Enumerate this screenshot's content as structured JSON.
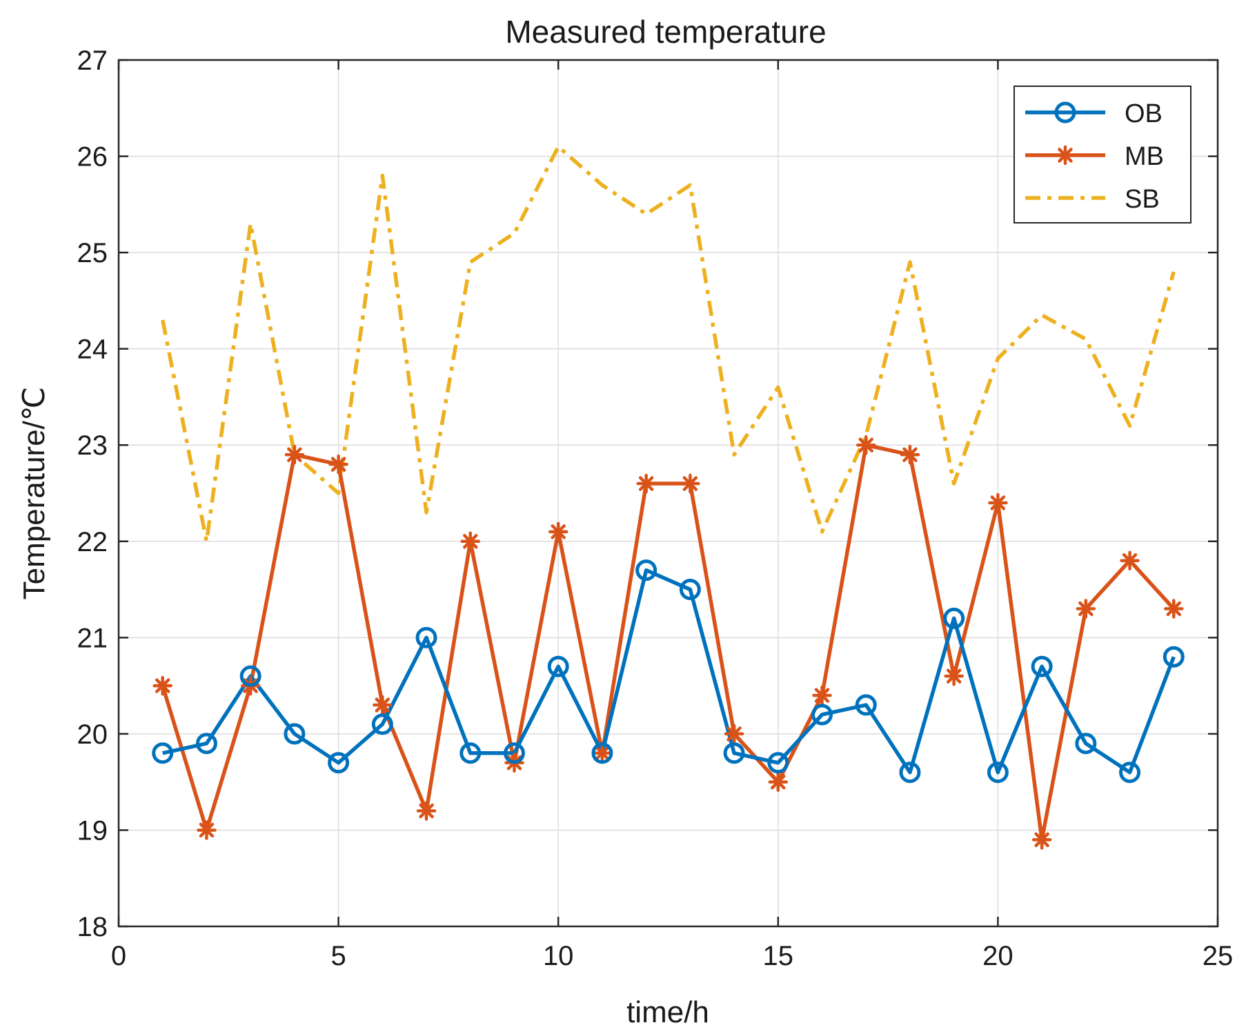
{
  "chart_data": {
    "type": "line",
    "title": "Measured temperature",
    "xlabel": "time/h",
    "ylabel": "Temperature/℃",
    "xlim": [
      0,
      25
    ],
    "ylim": [
      18,
      27
    ],
    "xticks": [
      0,
      5,
      10,
      15,
      20,
      25
    ],
    "yticks": [
      18,
      19,
      20,
      21,
      22,
      23,
      24,
      25,
      26,
      27
    ],
    "grid": true,
    "legend_position": "top-right",
    "x": [
      1,
      2,
      3,
      4,
      5,
      6,
      7,
      8,
      9,
      10,
      11,
      12,
      13,
      14,
      15,
      16,
      17,
      18,
      19,
      20,
      21,
      22,
      23,
      24
    ],
    "series": [
      {
        "name": "OB",
        "color": "#0072BD",
        "marker": "circle",
        "line_style": "solid",
        "values": [
          19.8,
          19.9,
          20.6,
          20.0,
          19.7,
          20.1,
          21.0,
          19.8,
          19.8,
          20.7,
          19.8,
          21.7,
          21.5,
          19.8,
          19.7,
          20.2,
          20.3,
          19.6,
          21.2,
          19.6,
          20.7,
          19.9,
          19.6,
          20.8
        ]
      },
      {
        "name": "MB",
        "color": "#D95319",
        "marker": "asterisk",
        "line_style": "solid",
        "values": [
          20.5,
          19.0,
          20.5,
          22.9,
          22.8,
          20.3,
          19.2,
          22.0,
          19.7,
          22.1,
          19.8,
          22.6,
          22.6,
          20.0,
          19.5,
          20.4,
          23.0,
          22.9,
          20.6,
          22.4,
          18.9,
          21.3,
          21.8,
          21.3
        ]
      },
      {
        "name": "SB",
        "color": "#EDB120",
        "marker": "none",
        "line_style": "dash-dot",
        "values": [
          24.3,
          22.0,
          25.3,
          22.9,
          22.5,
          25.8,
          22.3,
          24.9,
          25.2,
          26.1,
          25.7,
          25.4,
          25.7,
          22.9,
          23.6,
          22.1,
          23.1,
          24.9,
          22.6,
          23.9,
          24.35,
          24.1,
          23.2,
          24.8
        ]
      }
    ]
  }
}
